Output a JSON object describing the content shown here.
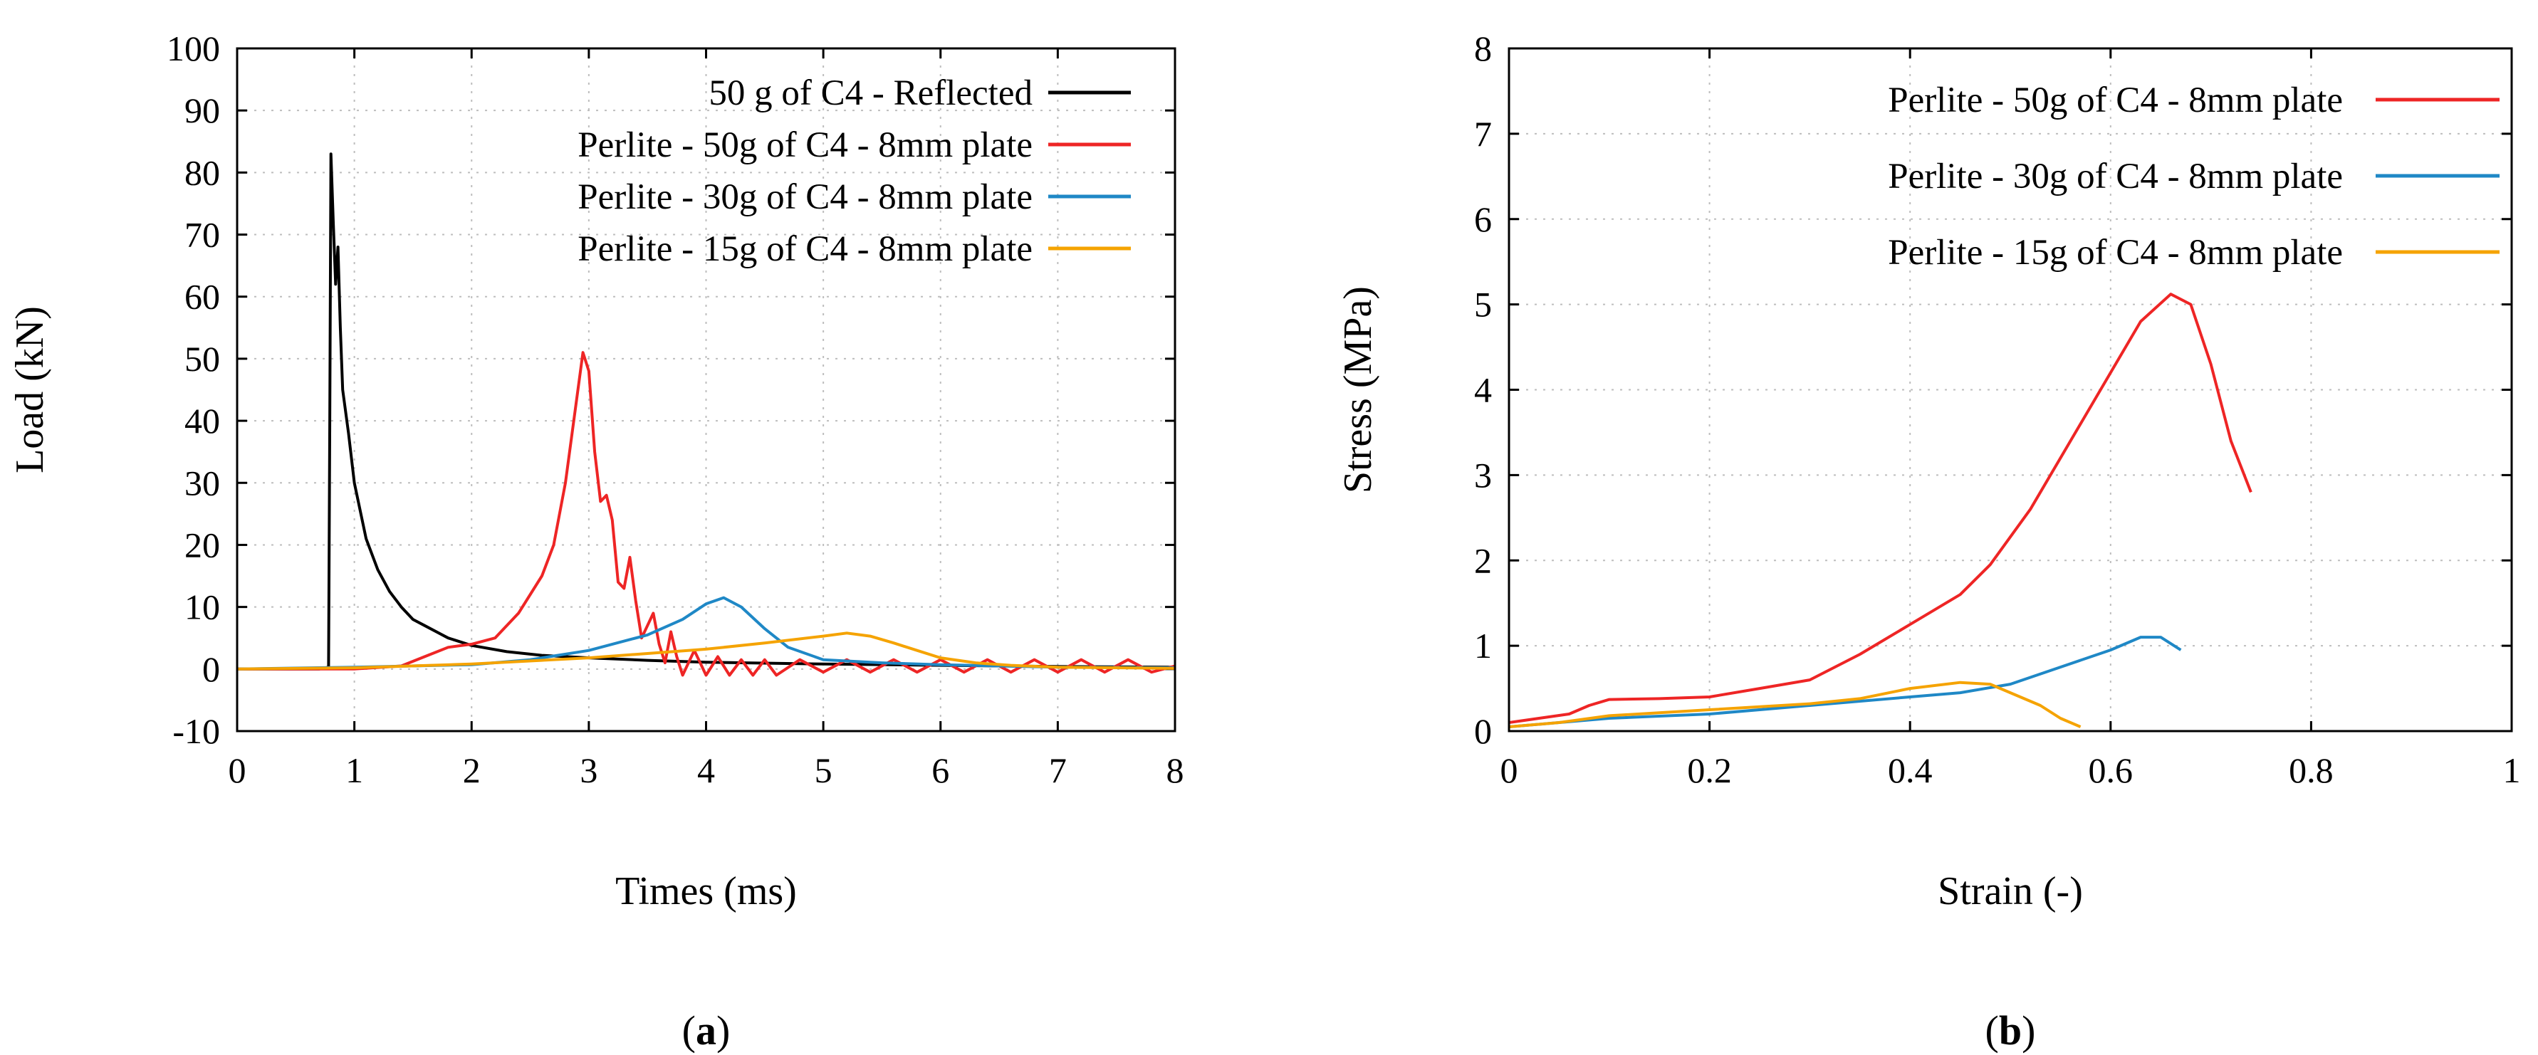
{
  "chart_data": [
    {
      "type": "line",
      "panel_label": "(a)",
      "panel_letter": "a",
      "xlabel": "Times (ms)",
      "ylabel": "Load (kN)",
      "xlim": [
        0,
        8
      ],
      "ylim": [
        -10,
        100
      ],
      "xticks": [
        0,
        1,
        2,
        3,
        4,
        5,
        6,
        7,
        8
      ],
      "yticks": [
        -10,
        0,
        10,
        20,
        30,
        40,
        50,
        60,
        70,
        80,
        90,
        100
      ],
      "grid": true,
      "legend_position": "top-right",
      "series": [
        {
          "name": "50 g of C4 - Reflected",
          "color": "#000000",
          "points": [
            [
              0,
              0
            ],
            [
              0.3,
              0
            ],
            [
              0.7,
              0
            ],
            [
              0.78,
              0.3
            ],
            [
              0.79,
              40
            ],
            [
              0.8,
              83
            ],
            [
              0.82,
              72
            ],
            [
              0.84,
              62
            ],
            [
              0.86,
              68
            ],
            [
              0.88,
              55
            ],
            [
              0.9,
              45
            ],
            [
              0.95,
              38
            ],
            [
              1.0,
              30
            ],
            [
              1.1,
              21
            ],
            [
              1.2,
              16
            ],
            [
              1.3,
              12.5
            ],
            [
              1.4,
              10
            ],
            [
              1.5,
              8
            ],
            [
              1.6,
              7
            ],
            [
              1.8,
              5
            ],
            [
              2.0,
              3.8
            ],
            [
              2.3,
              2.8
            ],
            [
              2.6,
              2.2
            ],
            [
              3.0,
              1.8
            ],
            [
              3.5,
              1.4
            ],
            [
              4.0,
              1.1
            ],
            [
              5.0,
              0.8
            ],
            [
              6.0,
              0.6
            ],
            [
              7.0,
              0.4
            ],
            [
              8.0,
              0.3
            ]
          ]
        },
        {
          "name": "Perlite - 50g of C4 - 8mm plate",
          "color": "#ee2525",
          "points": [
            [
              0,
              0
            ],
            [
              1.0,
              0
            ],
            [
              1.4,
              0.5
            ],
            [
              1.6,
              2
            ],
            [
              1.8,
              3.5
            ],
            [
              2.0,
              4
            ],
            [
              2.2,
              5
            ],
            [
              2.4,
              9
            ],
            [
              2.6,
              15
            ],
            [
              2.7,
              20
            ],
            [
              2.8,
              30
            ],
            [
              2.9,
              44
            ],
            [
              2.95,
              51
            ],
            [
              3.0,
              48
            ],
            [
              3.05,
              35
            ],
            [
              3.1,
              27
            ],
            [
              3.15,
              28
            ],
            [
              3.2,
              24
            ],
            [
              3.25,
              14
            ],
            [
              3.3,
              13
            ],
            [
              3.35,
              18
            ],
            [
              3.4,
              11
            ],
            [
              3.45,
              5
            ],
            [
              3.5,
              7
            ],
            [
              3.55,
              9
            ],
            [
              3.6,
              4
            ],
            [
              3.65,
              1
            ],
            [
              3.7,
              6
            ],
            [
              3.75,
              2
            ],
            [
              3.8,
              -1
            ],
            [
              3.9,
              3
            ],
            [
              4.0,
              -1
            ],
            [
              4.1,
              2
            ],
            [
              4.2,
              -1
            ],
            [
              4.3,
              1.5
            ],
            [
              4.4,
              -1
            ],
            [
              4.5,
              1.5
            ],
            [
              4.6,
              -1
            ],
            [
              4.8,
              1.5
            ],
            [
              5.0,
              -0.5
            ],
            [
              5.2,
              1.5
            ],
            [
              5.4,
              -0.5
            ],
            [
              5.6,
              1.5
            ],
            [
              5.8,
              -0.5
            ],
            [
              6.0,
              1.5
            ],
            [
              6.2,
              -0.5
            ],
            [
              6.4,
              1.5
            ],
            [
              6.6,
              -0.5
            ],
            [
              6.8,
              1.5
            ],
            [
              7.0,
              -0.5
            ],
            [
              7.2,
              1.5
            ],
            [
              7.4,
              -0.5
            ],
            [
              7.6,
              1.5
            ],
            [
              7.8,
              -0.5
            ],
            [
              8.0,
              0.5
            ]
          ]
        },
        {
          "name": "Perlite - 30g of C4 - 8mm plate",
          "color": "#1f88c6",
          "points": [
            [
              0,
              0
            ],
            [
              1.0,
              0.3
            ],
            [
              2.0,
              0.7
            ],
            [
              2.5,
              1.5
            ],
            [
              3.0,
              3
            ],
            [
              3.5,
              5.5
            ],
            [
              3.8,
              8
            ],
            [
              4.0,
              10.5
            ],
            [
              4.15,
              11.5
            ],
            [
              4.3,
              10
            ],
            [
              4.5,
              6.5
            ],
            [
              4.7,
              3.5
            ],
            [
              5.0,
              1.5
            ],
            [
              5.5,
              1
            ],
            [
              6.0,
              0.7
            ],
            [
              6.5,
              0.5
            ],
            [
              7.0,
              0.3
            ],
            [
              8.0,
              0.2
            ]
          ]
        },
        {
          "name": "Perlite - 15g of C4 - 8mm plate",
          "color": "#f5a300",
          "points": [
            [
              0,
              0
            ],
            [
              1.0,
              0.2
            ],
            [
              2.0,
              0.8
            ],
            [
              3.0,
              1.8
            ],
            [
              3.5,
              2.5
            ],
            [
              4.0,
              3.2
            ],
            [
              4.5,
              4.2
            ],
            [
              5.0,
              5.3
            ],
            [
              5.2,
              5.8
            ],
            [
              5.4,
              5.3
            ],
            [
              5.6,
              4.2
            ],
            [
              5.8,
              3
            ],
            [
              6.0,
              1.8
            ],
            [
              6.3,
              1
            ],
            [
              6.6,
              0.6
            ],
            [
              7.0,
              0.3
            ],
            [
              8.0,
              0.1
            ]
          ]
        }
      ]
    },
    {
      "type": "line",
      "panel_label": "(b)",
      "panel_letter": "b",
      "xlabel": "Strain (-)",
      "ylabel": "Stress (MPa)",
      "xlim": [
        0,
        1
      ],
      "ylim": [
        0,
        8
      ],
      "xticks": [
        0,
        0.2,
        0.4,
        0.6,
        0.8,
        1
      ],
      "yticks": [
        0,
        1,
        2,
        3,
        4,
        5,
        6,
        7,
        8
      ],
      "grid": true,
      "legend_position": "top-right",
      "series": [
        {
          "name": "Perlite - 50g of C4 - 8mm plate",
          "color": "#ee2525",
          "points": [
            [
              0,
              0.1
            ],
            [
              0.03,
              0.15
            ],
            [
              0.06,
              0.2
            ],
            [
              0.08,
              0.3
            ],
            [
              0.1,
              0.37
            ],
            [
              0.15,
              0.38
            ],
            [
              0.2,
              0.4
            ],
            [
              0.25,
              0.5
            ],
            [
              0.3,
              0.6
            ],
            [
              0.35,
              0.9
            ],
            [
              0.4,
              1.25
            ],
            [
              0.45,
              1.6
            ],
            [
              0.48,
              1.95
            ],
            [
              0.52,
              2.6
            ],
            [
              0.56,
              3.4
            ],
            [
              0.6,
              4.2
            ],
            [
              0.63,
              4.8
            ],
            [
              0.66,
              5.12
            ],
            [
              0.68,
              5.0
            ],
            [
              0.7,
              4.3
            ],
            [
              0.72,
              3.4
            ],
            [
              0.74,
              2.8
            ]
          ]
        },
        {
          "name": "Perlite - 30g of C4 - 8mm plate",
          "color": "#1f88c6",
          "points": [
            [
              0,
              0.05
            ],
            [
              0.05,
              0.1
            ],
            [
              0.1,
              0.15
            ],
            [
              0.2,
              0.2
            ],
            [
              0.3,
              0.3
            ],
            [
              0.4,
              0.4
            ],
            [
              0.45,
              0.45
            ],
            [
              0.5,
              0.55
            ],
            [
              0.55,
              0.75
            ],
            [
              0.6,
              0.95
            ],
            [
              0.63,
              1.1
            ],
            [
              0.65,
              1.1
            ],
            [
              0.67,
              0.95
            ]
          ]
        },
        {
          "name": "Perlite - 15g of C4 - 8mm plate",
          "color": "#f5a300",
          "points": [
            [
              0,
              0.05
            ],
            [
              0.05,
              0.1
            ],
            [
              0.1,
              0.18
            ],
            [
              0.2,
              0.25
            ],
            [
              0.3,
              0.32
            ],
            [
              0.35,
              0.38
            ],
            [
              0.4,
              0.5
            ],
            [
              0.45,
              0.57
            ],
            [
              0.48,
              0.55
            ],
            [
              0.5,
              0.45
            ],
            [
              0.53,
              0.3
            ],
            [
              0.55,
              0.15
            ],
            [
              0.57,
              0.05
            ]
          ]
        }
      ]
    }
  ]
}
